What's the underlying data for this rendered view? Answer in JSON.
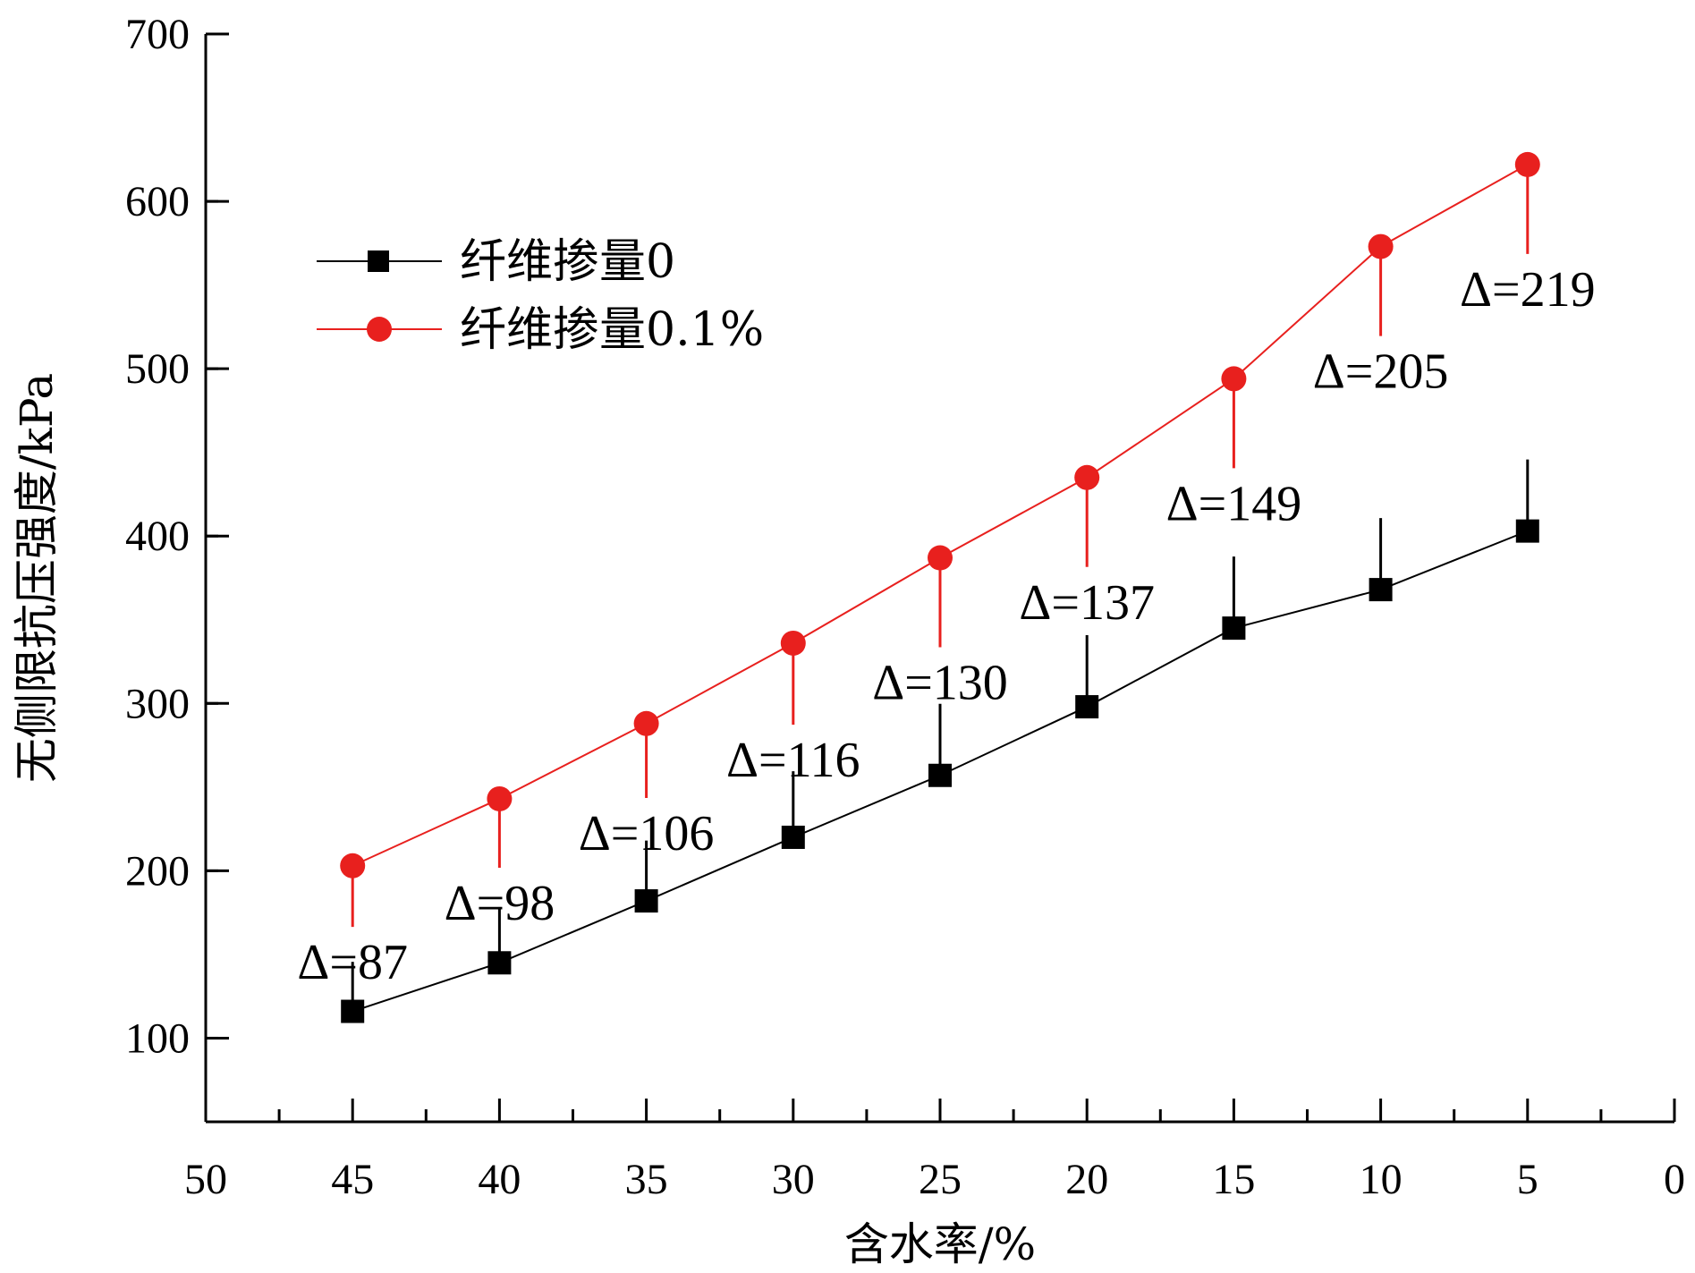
{
  "chart_data": {
    "type": "line",
    "xlabel": "含水率/%",
    "ylabel": "无侧限抗压强度/kPa",
    "xlim": [
      50,
      0
    ],
    "ylim": [
      50,
      700
    ],
    "x_reversed": true,
    "x_ticks": [
      50,
      45,
      40,
      35,
      30,
      25,
      20,
      15,
      10,
      5,
      0
    ],
    "y_ticks": [
      100,
      200,
      300,
      400,
      500,
      600,
      700
    ],
    "legend_position": "upper-left",
    "grid": false,
    "x": [
      45,
      40,
      35,
      30,
      25,
      20,
      15,
      10,
      5
    ],
    "series": [
      {
        "name": "纤维掺量0",
        "color": "#000000",
        "marker": "square",
        "values": [
          116,
          145,
          182,
          220,
          257,
          298,
          345,
          368,
          403
        ]
      },
      {
        "name": "纤维掺量0.1%",
        "color": "#e8201e",
        "marker": "circle",
        "values": [
          203,
          243,
          288,
          336,
          387,
          435,
          494,
          573,
          622
        ]
      }
    ],
    "annotations": [
      {
        "x": 45,
        "text": "Δ=87"
      },
      {
        "x": 40,
        "text": "Δ=98"
      },
      {
        "x": 35,
        "text": "Δ=106"
      },
      {
        "x": 30,
        "text": "Δ=116"
      },
      {
        "x": 25,
        "text": "Δ=130"
      },
      {
        "x": 20,
        "text": "Δ=137"
      },
      {
        "x": 15,
        "text": "Δ=149"
      },
      {
        "x": 10,
        "text": "Δ=205"
      },
      {
        "x": 5,
        "text": "Δ=219"
      }
    ]
  }
}
